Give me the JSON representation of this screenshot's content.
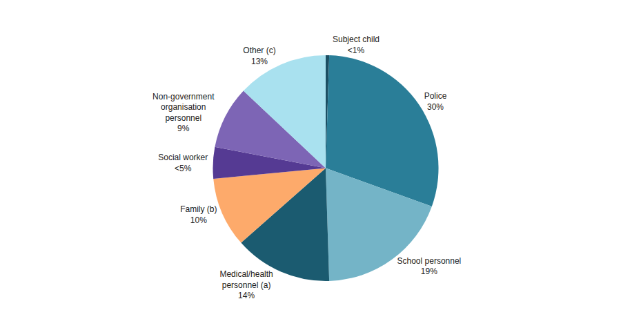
{
  "chart_data": {
    "type": "pie",
    "categories": [
      "Subject child",
      "Police",
      "School personnel",
      "Medical/health personnel (a)",
      "Family (b)",
      "Social worker",
      "Non-government organisation personnel",
      "Other (c)"
    ],
    "values": [
      0.5,
      30,
      19,
      14,
      10,
      4.5,
      9,
      13
    ],
    "value_labels": [
      "<1%",
      "30%",
      "19%",
      "14%",
      "10%",
      "<5%",
      "9%",
      "13%"
    ],
    "colors": [
      "#1c4f63",
      "#2a7e98",
      "#74b4c7",
      "#1b5b70",
      "#fdaa6b",
      "#553a93",
      "#7d65b5",
      "#a9e1ef"
    ],
    "data_labels": true
  }
}
